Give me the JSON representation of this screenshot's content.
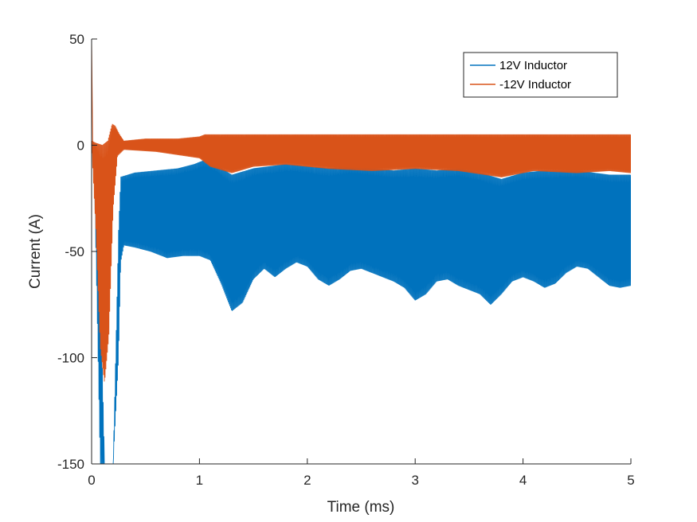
{
  "chart_data": {
    "type": "line",
    "xlabel": "Time (ms)",
    "ylabel": "Current (A)",
    "xlim": [
      0,
      5
    ],
    "ylim": [
      -150,
      50
    ],
    "xticks": [
      0,
      1,
      2,
      3,
      4,
      5
    ],
    "yticks": [
      50,
      0,
      -50,
      -100,
      -150
    ],
    "grid": false,
    "legend_position": "top-right",
    "series": [
      {
        "name": "12V Inductor",
        "color": "#0072BD",
        "style": "dense switching ripple band",
        "upper_envelope": [
          [
            0.0,
            0
          ],
          [
            0.02,
            2
          ],
          [
            0.08,
            -60
          ],
          [
            0.12,
            -150
          ],
          [
            0.2,
            -150
          ],
          [
            0.25,
            -40
          ],
          [
            0.27,
            -15
          ],
          [
            0.4,
            -13
          ],
          [
            0.6,
            -12
          ],
          [
            0.8,
            -11
          ],
          [
            0.95,
            -9
          ],
          [
            1.05,
            -7
          ],
          [
            1.15,
            -9
          ],
          [
            1.3,
            -14
          ],
          [
            1.5,
            -11
          ],
          [
            1.65,
            -10
          ],
          [
            1.8,
            -9
          ],
          [
            2.0,
            -10
          ],
          [
            2.2,
            -11
          ],
          [
            2.4,
            -10
          ],
          [
            2.6,
            -11
          ],
          [
            2.8,
            -12
          ],
          [
            3.0,
            -11
          ],
          [
            3.2,
            -12
          ],
          [
            3.4,
            -11
          ],
          [
            3.6,
            -13
          ],
          [
            3.8,
            -16
          ],
          [
            4.0,
            -13
          ],
          [
            4.2,
            -12
          ],
          [
            4.5,
            -12
          ],
          [
            4.8,
            -14
          ],
          [
            5.0,
            -14
          ]
        ],
        "lower_envelope": [
          [
            0.0,
            0
          ],
          [
            0.02,
            0
          ],
          [
            0.08,
            -150
          ],
          [
            0.2,
            -150
          ],
          [
            0.25,
            -100
          ],
          [
            0.27,
            -55
          ],
          [
            0.3,
            -47
          ],
          [
            0.4,
            -48
          ],
          [
            0.55,
            -50
          ],
          [
            0.7,
            -53
          ],
          [
            0.85,
            -52
          ],
          [
            1.0,
            -52
          ],
          [
            1.1,
            -54
          ],
          [
            1.2,
            -65
          ],
          [
            1.3,
            -78
          ],
          [
            1.4,
            -74
          ],
          [
            1.5,
            -63
          ],
          [
            1.6,
            -58
          ],
          [
            1.7,
            -62
          ],
          [
            1.8,
            -58
          ],
          [
            1.9,
            -55
          ],
          [
            2.0,
            -57
          ],
          [
            2.1,
            -63
          ],
          [
            2.2,
            -66
          ],
          [
            2.3,
            -63
          ],
          [
            2.4,
            -59
          ],
          [
            2.5,
            -58
          ],
          [
            2.6,
            -60
          ],
          [
            2.7,
            -62
          ],
          [
            2.8,
            -64
          ],
          [
            2.9,
            -67
          ],
          [
            3.0,
            -73
          ],
          [
            3.1,
            -70
          ],
          [
            3.2,
            -64
          ],
          [
            3.3,
            -63
          ],
          [
            3.4,
            -66
          ],
          [
            3.5,
            -68
          ],
          [
            3.6,
            -70
          ],
          [
            3.7,
            -75
          ],
          [
            3.8,
            -70
          ],
          [
            3.9,
            -64
          ],
          [
            4.0,
            -62
          ],
          [
            4.1,
            -64
          ],
          [
            4.2,
            -67
          ],
          [
            4.3,
            -65
          ],
          [
            4.4,
            -60
          ],
          [
            4.5,
            -57
          ],
          [
            4.6,
            -58
          ],
          [
            4.7,
            -62
          ],
          [
            4.8,
            -66
          ],
          [
            4.9,
            -67
          ],
          [
            5.0,
            -66
          ]
        ]
      },
      {
        "name": "-12V Inductor",
        "color": "#D95319",
        "style": "dense switching ripple band",
        "peak": [
          0.0,
          50
        ],
        "upper_envelope": [
          [
            0.0,
            2
          ],
          [
            0.04,
            1
          ],
          [
            0.1,
            0
          ],
          [
            0.15,
            2
          ],
          [
            0.19,
            10
          ],
          [
            0.22,
            9
          ],
          [
            0.26,
            5
          ],
          [
            0.3,
            2
          ],
          [
            0.5,
            3
          ],
          [
            0.8,
            3
          ],
          [
            1.0,
            4
          ],
          [
            1.05,
            5
          ],
          [
            2.0,
            5
          ],
          [
            3.0,
            5
          ],
          [
            4.0,
            5
          ],
          [
            5.0,
            5
          ]
        ],
        "lower_envelope": [
          [
            0.0,
            0
          ],
          [
            0.04,
            -40
          ],
          [
            0.08,
            -95
          ],
          [
            0.12,
            -112
          ],
          [
            0.16,
            -90
          ],
          [
            0.2,
            -30
          ],
          [
            0.24,
            -5
          ],
          [
            0.3,
            -2
          ],
          [
            0.6,
            -3
          ],
          [
            1.0,
            -6
          ],
          [
            1.1,
            -10
          ],
          [
            1.3,
            -13
          ],
          [
            1.5,
            -10
          ],
          [
            1.8,
            -9
          ],
          [
            2.2,
            -11
          ],
          [
            2.6,
            -12
          ],
          [
            3.0,
            -11
          ],
          [
            3.4,
            -12
          ],
          [
            3.8,
            -15
          ],
          [
            4.1,
            -12
          ],
          [
            4.5,
            -13
          ],
          [
            4.8,
            -12
          ],
          [
            5.0,
            -13
          ]
        ]
      }
    ]
  }
}
